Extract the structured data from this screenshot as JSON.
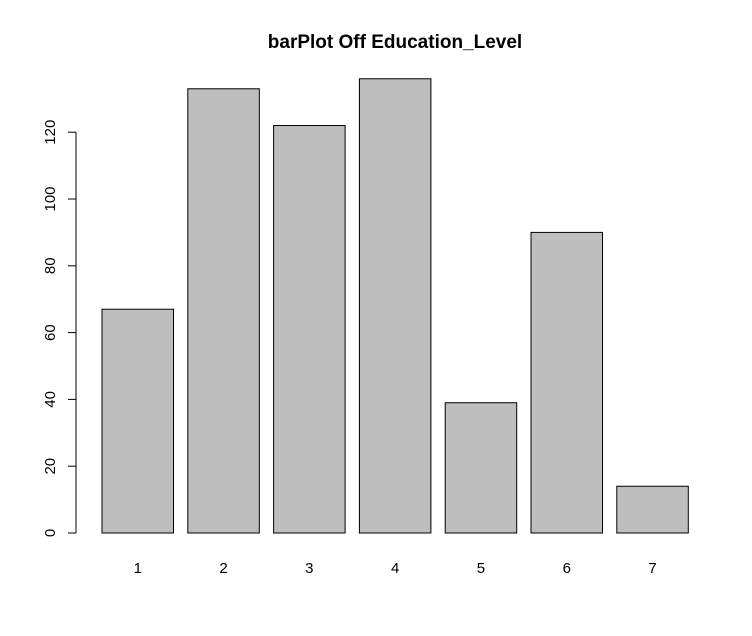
{
  "chart_data": {
    "type": "bar",
    "title": "barPlot Off Education_Level",
    "xlabel": "",
    "ylabel": "",
    "categories": [
      "1",
      "2",
      "3",
      "4",
      "5",
      "6",
      "7"
    ],
    "values": [
      67,
      133,
      122,
      136,
      39,
      90,
      14
    ],
    "ylim": [
      0,
      136
    ],
    "yticks": [
      0,
      20,
      40,
      60,
      80,
      100,
      120
    ],
    "ytick_labels": [
      "0",
      "20",
      "40",
      "60",
      "80",
      "100",
      "120"
    ],
    "grid": false,
    "legend": "none",
    "bar_color": "#bebebe",
    "edge_color": "#000000"
  }
}
